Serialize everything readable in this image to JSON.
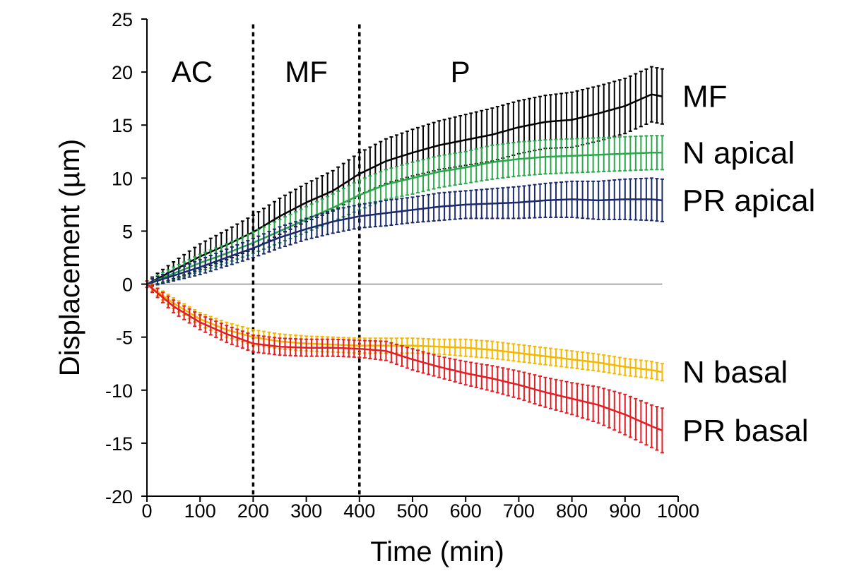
{
  "chart_data": {
    "type": "line",
    "xlabel": "Time (min)",
    "ylabel": "Displacement (µm)",
    "xlim": [
      0,
      1000
    ],
    "ylim": [
      -20,
      25
    ],
    "x_ticks": [
      "0",
      "100",
      "200",
      "300",
      "400",
      "500",
      "600",
      "700",
      "800",
      "900",
      "1000"
    ],
    "y_ticks": [
      "25",
      "20",
      "15",
      "10",
      "5",
      "0",
      "-5",
      "-10",
      "-15",
      "-20"
    ],
    "phase_boundaries": [
      200,
      400
    ],
    "phases": [
      {
        "label": "AC",
        "x": 85
      },
      {
        "label": "MF",
        "x": 300
      },
      {
        "label": "P",
        "x": 590
      }
    ],
    "x": [
      0,
      50,
      100,
      150,
      200,
      250,
      300,
      350,
      400,
      450,
      500,
      550,
      600,
      650,
      700,
      750,
      800,
      850,
      900,
      950,
      970
    ],
    "series": [
      {
        "name": "MF",
        "color": "#000000",
        "values": [
          0,
          1.3,
          2.6,
          3.7,
          4.9,
          6.4,
          7.7,
          8.8,
          10.4,
          11.6,
          12.4,
          13.1,
          13.6,
          14.1,
          14.8,
          15.3,
          15.5,
          16.1,
          16.8,
          17.9,
          17.7
        ],
        "errors": [
          0.3,
          0.8,
          1.2,
          1.4,
          1.6,
          1.7,
          1.8,
          1.9,
          2.0,
          2.1,
          2.2,
          2.3,
          2.4,
          2.5,
          2.5,
          2.5,
          2.6,
          2.6,
          2.6,
          2.6,
          2.6
        ]
      },
      {
        "name": "N apical",
        "color": "#2aa84a",
        "values": [
          0,
          1.0,
          2.0,
          2.9,
          3.9,
          5.0,
          6.1,
          7.2,
          8.4,
          9.4,
          10.0,
          10.6,
          11.0,
          11.5,
          11.8,
          12.0,
          12.1,
          12.2,
          12.3,
          12.4,
          12.4
        ],
        "errors": [
          0.3,
          0.6,
          0.8,
          0.9,
          1.0,
          1.1,
          1.2,
          1.3,
          1.4,
          1.4,
          1.5,
          1.5,
          1.5,
          1.6,
          1.6,
          1.6,
          1.6,
          1.6,
          1.6,
          1.6,
          1.6
        ]
      },
      {
        "name": "PR apical",
        "color": "#1c2a6b",
        "values": [
          0,
          0.8,
          1.6,
          2.5,
          3.4,
          4.4,
          5.2,
          5.9,
          6.4,
          6.7,
          7.0,
          7.3,
          7.5,
          7.6,
          7.7,
          7.9,
          8.0,
          7.9,
          8.0,
          8.0,
          7.9
        ],
        "errors": [
          0.3,
          0.5,
          0.7,
          0.8,
          0.9,
          1.0,
          1.0,
          1.1,
          1.1,
          1.2,
          1.2,
          1.3,
          1.3,
          1.4,
          1.5,
          1.6,
          1.7,
          1.8,
          1.9,
          2.0,
          2.0
        ]
      },
      {
        "name": "N basal",
        "color": "#f5b800",
        "values": [
          0,
          -1.8,
          -3.3,
          -4.3,
          -5.0,
          -5.4,
          -5.6,
          -5.7,
          -5.8,
          -5.8,
          -5.8,
          -5.9,
          -6.0,
          -6.2,
          -6.5,
          -6.8,
          -7.1,
          -7.4,
          -7.8,
          -8.1,
          -8.3
        ],
        "errors": [
          0.3,
          0.5,
          0.6,
          0.7,
          0.7,
          0.7,
          0.7,
          0.7,
          0.7,
          0.7,
          0.7,
          0.7,
          0.8,
          0.8,
          0.8,
          0.8,
          0.8,
          0.8,
          0.8,
          0.8,
          0.8
        ]
      },
      {
        "name": "PR basal",
        "color": "#e31e24",
        "values": [
          0,
          -2.1,
          -3.6,
          -4.7,
          -5.6,
          -5.9,
          -6.0,
          -6.0,
          -6.1,
          -6.3,
          -7.1,
          -7.8,
          -8.4,
          -8.9,
          -9.5,
          -10.2,
          -10.8,
          -11.4,
          -12.3,
          -13.4,
          -13.8
        ],
        "errors": [
          0.3,
          0.6,
          0.7,
          0.8,
          0.8,
          0.8,
          0.8,
          0.8,
          0.8,
          0.9,
          1.0,
          1.0,
          1.1,
          1.2,
          1.3,
          1.4,
          1.5,
          1.7,
          1.9,
          2.0,
          2.1
        ]
      }
    ]
  }
}
